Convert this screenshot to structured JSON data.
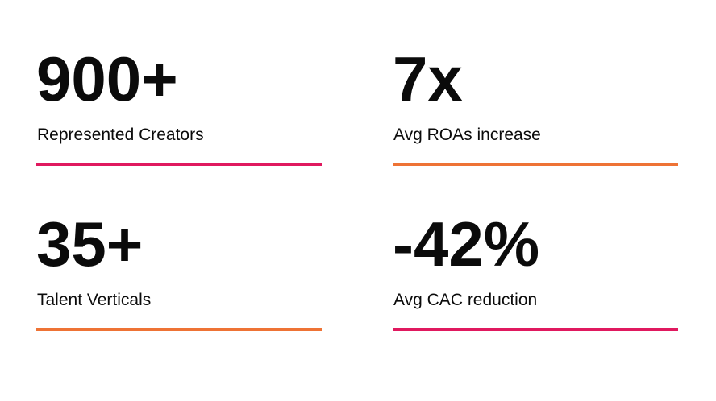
{
  "stats": [
    {
      "value": "900+",
      "label": "Represented Creators",
      "accent": "#e0195f"
    },
    {
      "value": "7x",
      "label": "Avg ROAs increase",
      "accent": "#ee7335"
    },
    {
      "value": "35+",
      "label": "Talent Verticals",
      "accent": "#ee7335"
    },
    {
      "value": "-42%",
      "label": "Avg CAC reduction",
      "accent": "#e0195f"
    }
  ]
}
